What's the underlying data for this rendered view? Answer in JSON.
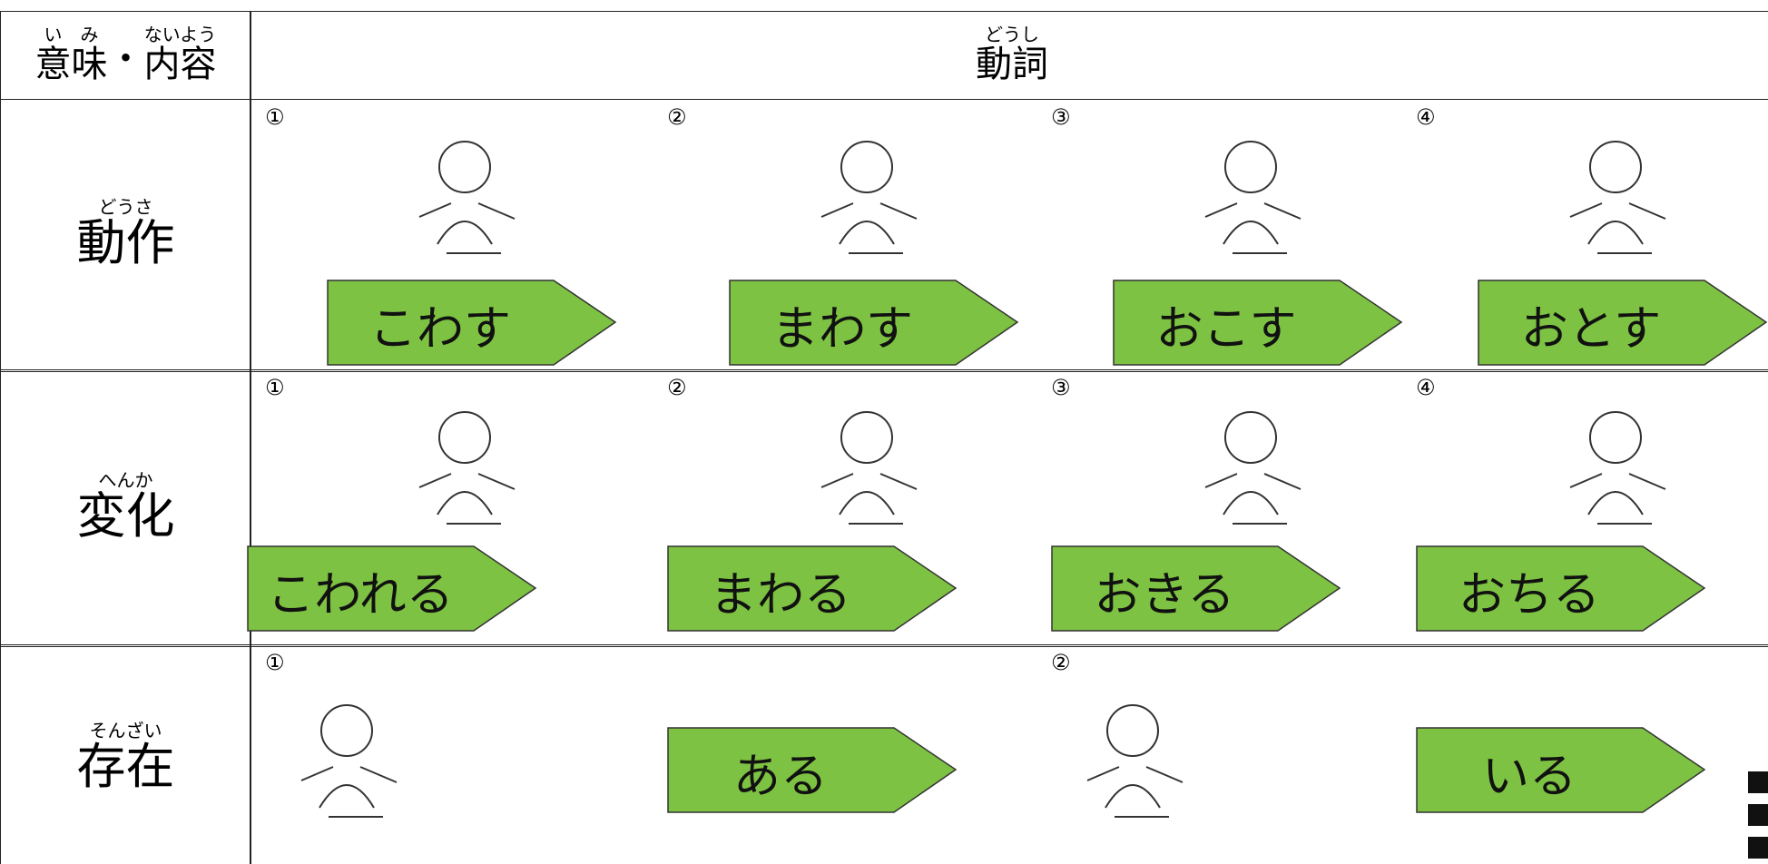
{
  "header": {
    "label": [
      {
        "base": "意",
        "rt": "い"
      },
      {
        "base": "味",
        "rt": "み"
      },
      {
        "base": "・"
      },
      {
        "base": "内容",
        "rt": "ないよう"
      }
    ],
    "title": [
      {
        "base": "動詞",
        "rt": "どうし"
      }
    ]
  },
  "rows": [
    {
      "label": [
        {
          "base": "動作",
          "rt": "どうさ"
        }
      ],
      "items": [
        {
          "number": "①",
          "verb": "こわす"
        },
        {
          "number": "②",
          "verb": "まわす"
        },
        {
          "number": "③",
          "verb": "おこす"
        },
        {
          "number": "④",
          "verb": "おとす"
        }
      ]
    },
    {
      "label": [
        {
          "base": "変化",
          "rt": "へんか"
        }
      ],
      "items": [
        {
          "number": "①",
          "verb": "こわれる"
        },
        {
          "number": "②",
          "verb": "まわる"
        },
        {
          "number": "③",
          "verb": "おきる"
        },
        {
          "number": "④",
          "verb": "おちる"
        }
      ]
    },
    {
      "label": [
        {
          "base": "存在",
          "rt": "そんざい"
        }
      ],
      "items": [
        {
          "number": "①",
          "verb": "ある"
        },
        {
          "number": "②",
          "verb": "いる"
        }
      ]
    }
  ]
}
